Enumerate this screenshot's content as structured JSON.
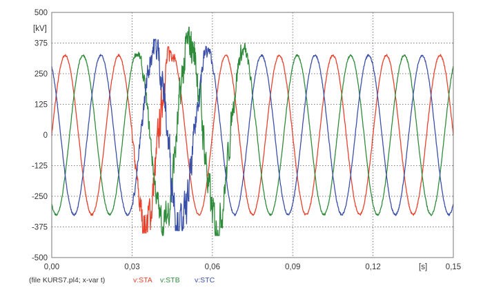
{
  "chart_data": {
    "type": "line",
    "ylabel_unit": "[kV]",
    "xlabel_unit": "[s]",
    "xlim": [
      0,
      0.15
    ],
    "ylim": [
      -500,
      500
    ],
    "xticks": [
      0,
      0.03,
      0.06,
      0.09,
      0.12,
      0.15
    ],
    "xtick_labels": [
      "0,00",
      "0,03",
      "0,06",
      "0,09",
      "0,12",
      "0,15"
    ],
    "yticks": [
      500,
      375,
      250,
      125,
      0,
      -125,
      -250,
      -375,
      -500
    ],
    "ytick_labels": [
      "500",
      "375",
      "250",
      "125",
      "0",
      "-125",
      "-250",
      "-375",
      "-500"
    ],
    "grid": true,
    "legend_prefix": "(file KURS7.pl4; x-var t)",
    "series": [
      {
        "name": "v:STA",
        "color": "#e8412c",
        "amplitude": 325,
        "frequency_hz": 50,
        "phase_deg": 0,
        "disturbance_interval_s": [
          0.029,
          0.047
        ],
        "disturbance_peak_kV": [
          -400,
          360
        ]
      },
      {
        "name": "v:STB",
        "color": "#2e8b3a",
        "amplitude": 325,
        "frequency_hz": 50,
        "phase_deg": -120,
        "disturbance_interval_s": [
          0.029,
          0.078
        ],
        "disturbance_peak_kV": [
          -410,
          440
        ]
      },
      {
        "name": "v:STC",
        "color": "#3a4fa8",
        "amplitude": 325,
        "frequency_hz": 50,
        "phase_deg": 120,
        "disturbance_interval_s": [
          0.029,
          0.062
        ],
        "disturbance_peak_kV": [
          -390,
          390
        ]
      }
    ]
  }
}
